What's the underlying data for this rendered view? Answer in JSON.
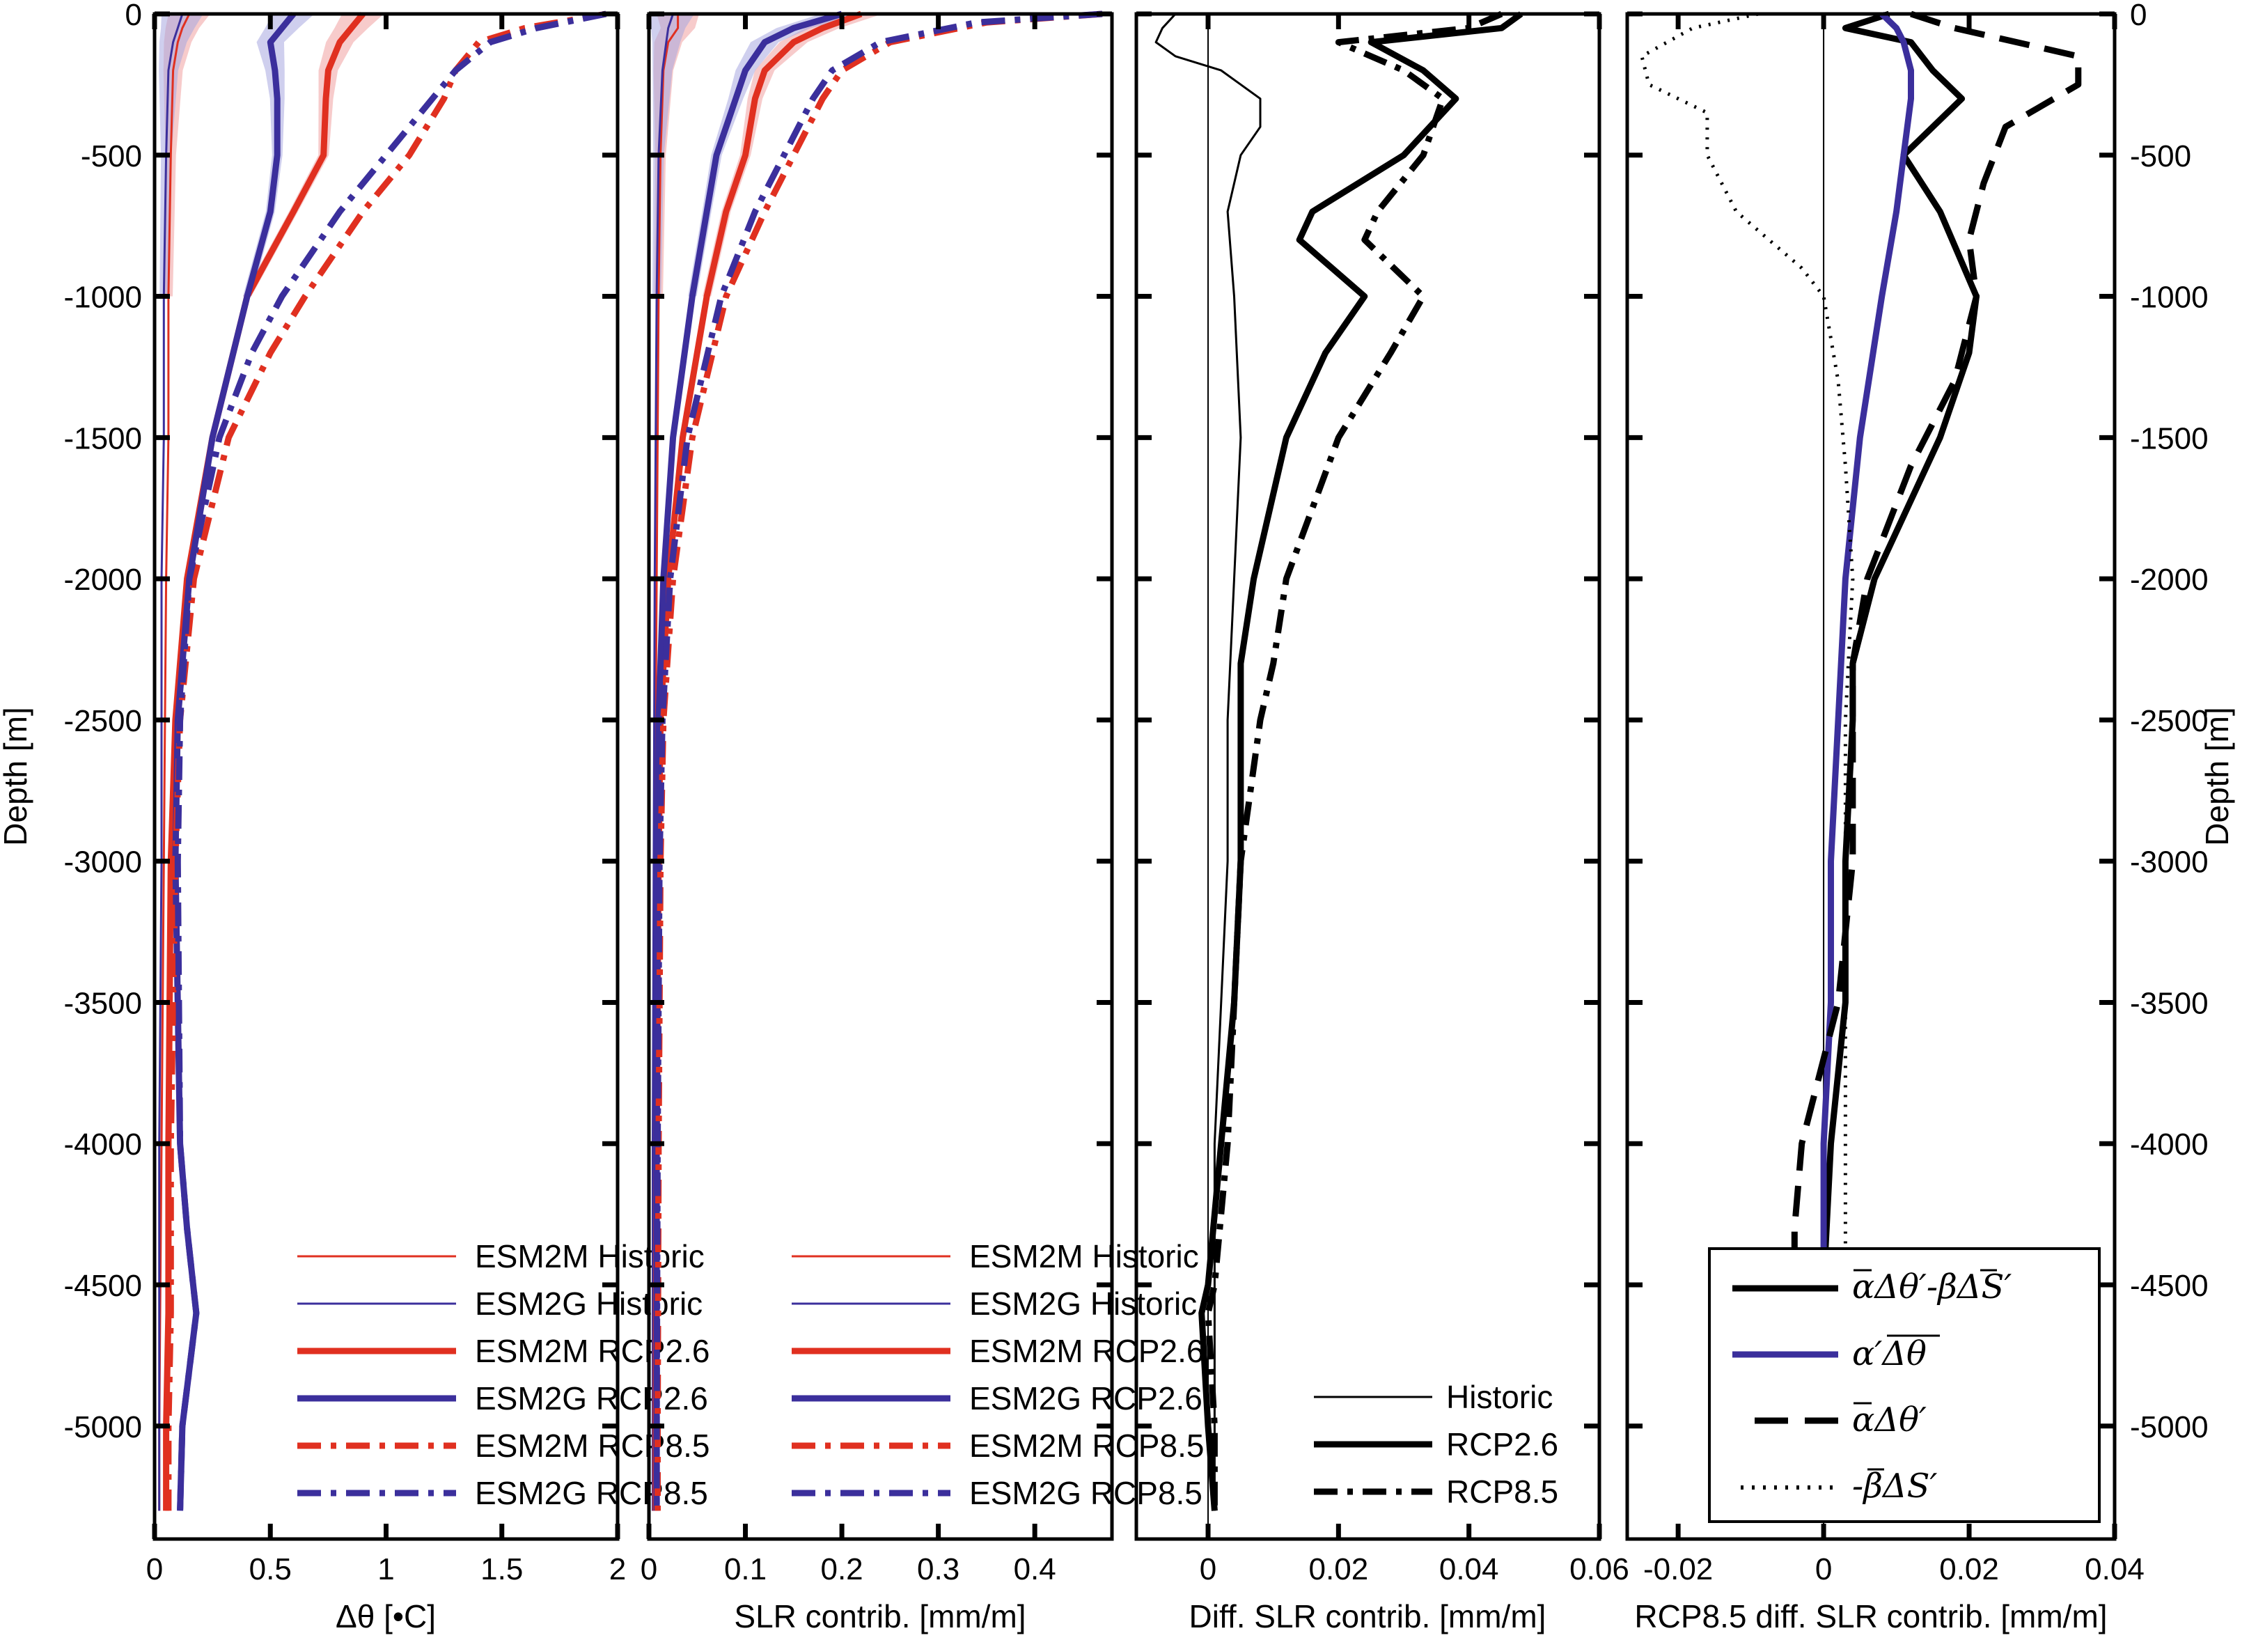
{
  "colors": {
    "esm2m": "#e03020",
    "esm2g": "#3b2f9c",
    "esm2m_band": "#f0a0a0",
    "esm2g_band": "#a8a8e0",
    "black": "#000000"
  },
  "chart_data": [
    {
      "type": "line",
      "xlabel": "Δθ [•C]",
      "ylabel": "Depth [m]",
      "xlim": [
        0,
        2
      ],
      "ylim": [
        -5400,
        0
      ],
      "xticks": [
        0,
        0.5,
        1,
        1.5,
        2
      ],
      "xtick_labels": [
        "0",
        "0.5",
        "1",
        "1.5",
        "2"
      ],
      "yticks": [
        0,
        -500,
        -1000,
        -1500,
        -2000,
        -2500,
        -3000,
        -3500,
        -4000,
        -4500,
        -5000
      ],
      "ytick_labels": [
        "0",
        "-500",
        "-1000",
        "-1500",
        "-2000",
        "-2500",
        "-3000",
        "-3500",
        "-4000",
        "-4500",
        "-5000"
      ],
      "legend_position": "bottom-right",
      "series": [
        {
          "name": "ESM2M Historic",
          "style": "thin",
          "color": "esm2m",
          "depth": [
            0,
            -50,
            -100,
            -200,
            -500,
            -1000,
            -1500,
            -2000,
            -3000,
            -4000,
            -5000,
            -5300
          ],
          "x": [
            0.15,
            0.12,
            0.1,
            0.08,
            0.07,
            0.06,
            0.06,
            0.05,
            0.04,
            0.03,
            0.02,
            0.02
          ]
        },
        {
          "name": "ESM2G Historic",
          "style": "thin",
          "color": "esm2g",
          "depth": [
            0,
            -50,
            -100,
            -200,
            -500,
            -1000,
            -1500,
            -2000,
            -3000,
            -4000,
            -5000,
            -5300
          ],
          "x": [
            0.12,
            0.1,
            0.08,
            0.06,
            0.05,
            0.04,
            0.04,
            0.03,
            0.03,
            0.02,
            0.02,
            0.02
          ]
        },
        {
          "name": "ESM2M RCP2.6",
          "style": "thick",
          "color": "esm2m",
          "depth": [
            0,
            -50,
            -100,
            -200,
            -300,
            -500,
            -700,
            -1000,
            -1500,
            -2000,
            -2500,
            -3000,
            -4000,
            -4600,
            -5000,
            -5300
          ],
          "x": [
            0.9,
            0.85,
            0.8,
            0.75,
            0.74,
            0.73,
            0.6,
            0.4,
            0.25,
            0.14,
            0.09,
            0.07,
            0.06,
            0.06,
            0.05,
            0.05
          ]
        },
        {
          "name": "ESM2G RCP2.6",
          "style": "thick",
          "color": "esm2g",
          "depth": [
            0,
            -50,
            -100,
            -200,
            -300,
            -500,
            -700,
            -1000,
            -1500,
            -2000,
            -2500,
            -3000,
            -4000,
            -4300,
            -4600,
            -5000,
            -5300
          ],
          "x": [
            0.6,
            0.55,
            0.5,
            0.52,
            0.53,
            0.53,
            0.5,
            0.4,
            0.25,
            0.15,
            0.1,
            0.09,
            0.11,
            0.14,
            0.18,
            0.12,
            0.11
          ]
        },
        {
          "name": "ESM2M RCP8.5",
          "style": "dashdot",
          "color": "esm2m",
          "depth": [
            0,
            -50,
            -100,
            -200,
            -300,
            -500,
            -700,
            -1000,
            -1200,
            -1500,
            -2000,
            -2500,
            -3000,
            -4000,
            -4600,
            -5000,
            -5300
          ],
          "x": [
            1.95,
            1.6,
            1.4,
            1.3,
            1.25,
            1.1,
            0.9,
            0.65,
            0.5,
            0.32,
            0.17,
            0.11,
            0.09,
            0.07,
            0.07,
            0.06,
            0.06
          ]
        },
        {
          "name": "ESM2G RCP8.5",
          "style": "dashdot",
          "color": "esm2g",
          "depth": [
            0,
            -50,
            -100,
            -200,
            -300,
            -500,
            -700,
            -1000,
            -1200,
            -1500,
            -2000,
            -2500,
            -3000,
            -4000,
            -4300,
            -4600,
            -5000,
            -5300
          ],
          "x": [
            1.95,
            1.65,
            1.45,
            1.3,
            1.2,
            1.0,
            0.8,
            0.55,
            0.42,
            0.28,
            0.15,
            0.11,
            0.1,
            0.11,
            0.14,
            0.18,
            0.12,
            0.11
          ]
        }
      ]
    },
    {
      "type": "line",
      "xlabel": "SLR contrib. [mm/m]",
      "xlim": [
        0,
        0.48
      ],
      "ylim": [
        -5400,
        0
      ],
      "xticks": [
        0,
        0.1,
        0.2,
        0.3,
        0.4
      ],
      "xtick_labels": [
        "0",
        "0.1",
        "0.2",
        "0.3",
        "0.4"
      ],
      "legend_position": "bottom-right",
      "series": [
        {
          "name": "ESM2M Historic",
          "style": "thin",
          "color": "esm2m",
          "depth": [
            0,
            -50,
            -100,
            -200,
            -500,
            -1000,
            -2000,
            -3000,
            -4000,
            -5000,
            -5300
          ],
          "x": [
            0.03,
            0.03,
            0.02,
            0.015,
            0.012,
            0.01,
            0.008,
            0.006,
            0.005,
            0.004,
            0.004
          ]
        },
        {
          "name": "ESM2G Historic",
          "style": "thin",
          "color": "esm2g",
          "depth": [
            0,
            -50,
            -100,
            -200,
            -500,
            -1000,
            -2000,
            -3000,
            -4000,
            -5000,
            -5300
          ],
          "x": [
            0.025,
            0.02,
            0.018,
            0.014,
            0.01,
            0.008,
            0.006,
            0.005,
            0.004,
            0.004,
            0.004
          ]
        },
        {
          "name": "ESM2M RCP2.6",
          "style": "thick",
          "color": "esm2m",
          "depth": [
            0,
            -50,
            -100,
            -200,
            -300,
            -500,
            -700,
            -1000,
            -1500,
            -2000,
            -2500,
            -3000,
            -4000,
            -5000,
            -5300
          ],
          "x": [
            0.22,
            0.18,
            0.15,
            0.12,
            0.11,
            0.1,
            0.08,
            0.06,
            0.035,
            0.02,
            0.012,
            0.01,
            0.008,
            0.007,
            0.007
          ]
        },
        {
          "name": "ESM2G RCP2.6",
          "style": "thick",
          "color": "esm2g",
          "depth": [
            0,
            -50,
            -100,
            -200,
            -300,
            -500,
            -700,
            -1000,
            -1500,
            -2000,
            -2500,
            -3000,
            -4000,
            -5000,
            -5300
          ],
          "x": [
            0.2,
            0.15,
            0.12,
            0.1,
            0.09,
            0.07,
            0.06,
            0.045,
            0.025,
            0.015,
            0.01,
            0.009,
            0.008,
            0.008,
            0.008
          ]
        },
        {
          "name": "ESM2M RCP8.5",
          "style": "dashdot",
          "color": "esm2m",
          "depth": [
            0,
            -30,
            -100,
            -200,
            -300,
            -500,
            -700,
            -1000,
            -1500,
            -2000,
            -2500,
            -3000,
            -4000,
            -5000,
            -5300
          ],
          "x": [
            0.47,
            0.35,
            0.25,
            0.2,
            0.18,
            0.15,
            0.12,
            0.08,
            0.045,
            0.025,
            0.015,
            0.012,
            0.01,
            0.009,
            0.009
          ]
        },
        {
          "name": "ESM2G RCP8.5",
          "style": "dashdot",
          "color": "esm2g",
          "depth": [
            0,
            -30,
            -100,
            -200,
            -300,
            -500,
            -700,
            -1000,
            -1500,
            -2000,
            -2500,
            -3000,
            -4000,
            -5000,
            -5300
          ],
          "x": [
            0.47,
            0.34,
            0.24,
            0.19,
            0.17,
            0.14,
            0.11,
            0.075,
            0.04,
            0.022,
            0.014,
            0.011,
            0.009,
            0.008,
            0.008
          ]
        }
      ]
    },
    {
      "type": "line",
      "xlabel": "Diff. SLR contrib. [mm/m]",
      "xlim": [
        -0.011,
        0.06
      ],
      "ylim": [
        -5400,
        0
      ],
      "xticks": [
        0,
        0.02,
        0.04,
        0.06
      ],
      "xtick_labels": [
        "0",
        "0.02",
        "0.04",
        "0.06"
      ],
      "legend_position": "bottom-right",
      "series": [
        {
          "name": "Historic",
          "style": "thin",
          "color": "black",
          "depth": [
            0,
            -50,
            -100,
            -150,
            -200,
            -300,
            -400,
            -500,
            -700,
            -1000,
            -1500,
            -2000,
            -2500,
            -3000,
            -3500,
            -4000,
            -4500,
            -5000,
            -5300
          ],
          "x": [
            -0.005,
            -0.007,
            -0.008,
            -0.005,
            0.002,
            0.008,
            0.008,
            0.005,
            0.003,
            0.004,
            0.005,
            0.004,
            0.003,
            0.003,
            0.002,
            0.001,
            0.001,
            0.001,
            0.001
          ]
        },
        {
          "name": "RCP2.6",
          "style": "thick",
          "color": "black",
          "depth": [
            0,
            -50,
            -100,
            -200,
            -300,
            -500,
            -700,
            -800,
            -1000,
            -1200,
            -1500,
            -2000,
            -2300,
            -2500,
            -3000,
            -3500,
            -4000,
            -4500,
            -4600,
            -5000,
            -5300
          ],
          "x": [
            0.048,
            0.045,
            0.025,
            0.033,
            0.038,
            0.03,
            0.016,
            0.014,
            0.024,
            0.018,
            0.012,
            0.007,
            0.005,
            0.005,
            0.005,
            0.004,
            0.002,
            0.0,
            -0.001,
            0.0,
            0.001
          ]
        },
        {
          "name": "RCP8.5",
          "style": "dashdot",
          "color": "black",
          "depth": [
            0,
            -50,
            -100,
            -200,
            -300,
            -500,
            -700,
            -800,
            -1000,
            -1200,
            -1500,
            -2000,
            -2300,
            -2500,
            -3000,
            -3500,
            -4000,
            -4500,
            -4600,
            -5000,
            -5300
          ],
          "x": [
            0.045,
            0.04,
            0.02,
            0.03,
            0.036,
            0.033,
            0.026,
            0.024,
            0.033,
            0.028,
            0.02,
            0.012,
            0.01,
            0.008,
            0.005,
            0.004,
            0.003,
            0.001,
            0.0,
            0.001,
            0.001
          ]
        }
      ]
    },
    {
      "type": "line",
      "xlabel": "RCP8.5 diff. SLR contrib. [mm/m]",
      "ylabel": "Depth [m]",
      "xlim": [
        -0.027,
        0.04
      ],
      "ylim": [
        -5400,
        0
      ],
      "xticks": [
        -0.02,
        0,
        0.02,
        0.04
      ],
      "xtick_labels": [
        "-0.02",
        "0",
        "0.02",
        "0.04"
      ],
      "legend_position": "bottom-right",
      "series": [
        {
          "name": "total",
          "style": "thick",
          "color": "black",
          "depth": [
            0,
            -50,
            -100,
            -200,
            -300,
            -500,
            -700,
            -1000,
            -1200,
            -1500,
            -2000,
            -2300,
            -2500,
            -3000,
            -3500,
            -4000,
            -4500
          ],
          "x": [
            0.009,
            0.003,
            0.012,
            0.015,
            0.019,
            0.011,
            0.016,
            0.021,
            0.02,
            0.016,
            0.007,
            0.004,
            0.004,
            0.003,
            0.003,
            0.001,
            0.0
          ]
        },
        {
          "name": "alpha_prime_dtheta",
          "style": "thick",
          "color": "esm2g",
          "depth": [
            0,
            -50,
            -100,
            -200,
            -300,
            -500,
            -700,
            -1000,
            -1500,
            -2000,
            -2500,
            -3000,
            -3500,
            -4000,
            -4500
          ],
          "x": [
            0.008,
            0.01,
            0.011,
            0.012,
            0.012,
            0.011,
            0.01,
            0.008,
            0.005,
            0.003,
            0.002,
            0.001,
            0.001,
            0.0,
            0.0
          ]
        },
        {
          "name": "alpha_dtheta_prime",
          "style": "dashed",
          "color": "black",
          "depth": [
            0,
            -50,
            -150,
            -250,
            -400,
            -600,
            -800,
            -1000,
            -1300,
            -1600,
            -2000,
            -2300,
            -2600,
            -3000,
            -3500,
            -3800,
            -4000,
            -4300,
            -4500
          ],
          "x": [
            0.012,
            0.018,
            0.035,
            0.035,
            0.025,
            0.022,
            0.02,
            0.021,
            0.018,
            0.012,
            0.006,
            0.004,
            0.004,
            0.004,
            0.002,
            -0.001,
            -0.003,
            -0.004,
            -0.004
          ]
        },
        {
          "name": "beta_dS_prime",
          "style": "dotted",
          "color": "black",
          "depth": [
            0,
            -50,
            -150,
            -250,
            -350,
            -500,
            -700,
            -900,
            -1000,
            -1300,
            -1600,
            -2000,
            -2500,
            -3000,
            -3500,
            -4000,
            -4500
          ],
          "x": [
            -0.009,
            -0.018,
            -0.025,
            -0.024,
            -0.016,
            -0.016,
            -0.012,
            -0.003,
            0.0,
            0.002,
            0.003,
            0.004,
            0.003,
            0.003,
            0.003,
            0.003,
            0.003
          ]
        }
      ]
    }
  ],
  "legends": {
    "panel1": [
      "ESM2M Historic",
      "ESM2G Historic",
      "ESM2M RCP2.6",
      "ESM2G RCP2.6",
      "ESM2M RCP8.5",
      "ESM2G RCP8.5"
    ],
    "panel2": [
      "ESM2M Historic",
      "ESM2G Historic",
      "ESM2M RCP2.6",
      "ESM2G RCP2.6",
      "ESM2M RCP8.5",
      "ESM2G RCP8.5"
    ],
    "panel3": [
      "Historic",
      "RCP2.6",
      "RCP8.5"
    ]
  }
}
